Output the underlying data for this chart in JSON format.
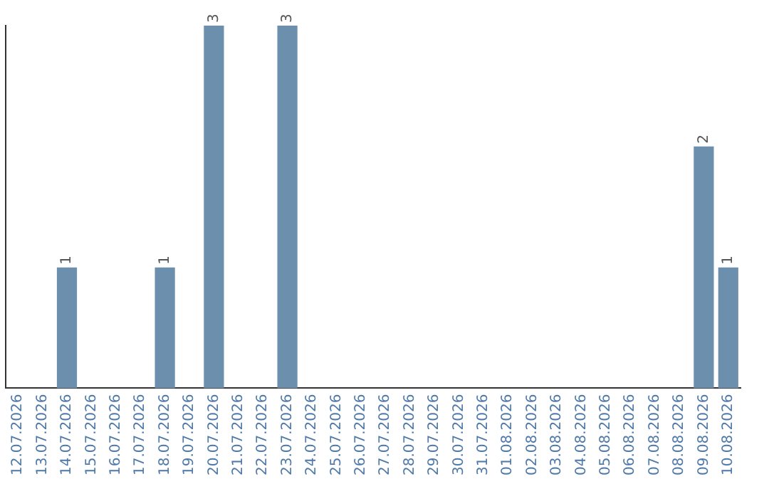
{
  "chart_data": {
    "type": "bar",
    "categories": [
      "12.07.2026",
      "13.07.2026",
      "14.07.2026",
      "15.07.2026",
      "16.07.2026",
      "17.07.2026",
      "18.07.2026",
      "19.07.2026",
      "20.07.2026",
      "21.07.2026",
      "22.07.2026",
      "23.07.2026",
      "24.07.2026",
      "25.07.2026",
      "26.07.2026",
      "27.07.2026",
      "28.07.2026",
      "29.07.2026",
      "30.07.2026",
      "31.07.2026",
      "01.08.2026",
      "02.08.2026",
      "03.08.2026",
      "04.08.2026",
      "05.08.2026",
      "06.08.2026",
      "07.08.2026",
      "08.08.2026",
      "09.08.2026",
      "10.08.2026"
    ],
    "values": [
      0,
      0,
      1,
      0,
      0,
      0,
      1,
      0,
      3,
      0,
      0,
      3,
      0,
      0,
      0,
      0,
      0,
      0,
      0,
      0,
      0,
      0,
      0,
      0,
      0,
      0,
      0,
      0,
      2,
      1
    ],
    "value_labels": [
      null,
      null,
      "1",
      null,
      null,
      null,
      "1",
      null,
      "3",
      null,
      null,
      "3",
      null,
      null,
      null,
      null,
      null,
      null,
      null,
      null,
      null,
      null,
      null,
      null,
      null,
      null,
      null,
      null,
      "2",
      "1"
    ],
    "color": "#6d8fae",
    "grid": false,
    "legend": false,
    "tick_labels": "x"
  }
}
